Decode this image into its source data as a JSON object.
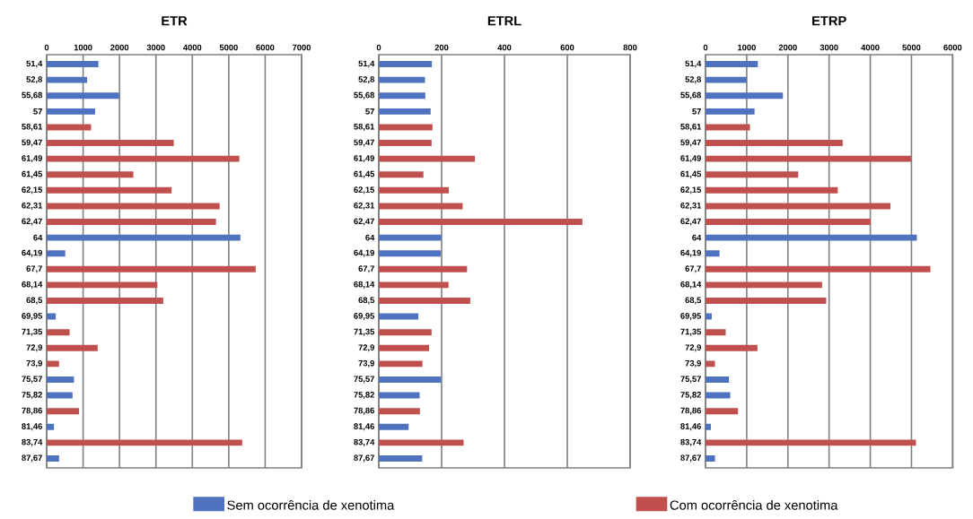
{
  "chart_data": [
    {
      "type": "bar",
      "title": "ETR",
      "orientation": "horizontal",
      "grid": "x",
      "legend": "bottom",
      "categories": [
        "51,4",
        "52,8",
        "55,68",
        "57",
        "58,61",
        "59,47",
        "61,49",
        "61,45",
        "62,15",
        "62,31",
        "62,47",
        "64",
        "64,19",
        "67,7",
        "68,14",
        "68,5",
        "69,95",
        "71,35",
        "72,9",
        "73,9",
        "75,57",
        "75,82",
        "78,86",
        "81,46",
        "83,74",
        "87,67"
      ],
      "xlim": [
        0,
        7000
      ],
      "xticks": [
        0,
        1000,
        2000,
        3000,
        4000,
        5000,
        6000,
        7000
      ],
      "series": [
        {
          "name": "Sem ocorrência de xenotima",
          "color": "#4f72be",
          "values": [
            1420,
            1110,
            1990,
            1330,
            null,
            null,
            null,
            null,
            null,
            null,
            null,
            5320,
            510,
            null,
            null,
            null,
            250,
            null,
            null,
            null,
            750,
            710,
            null,
            200,
            null,
            340
          ]
        },
        {
          "name": "Com ocorrência de xenotima",
          "color": "#c0504d",
          "values": [
            null,
            null,
            null,
            null,
            1220,
            3490,
            5290,
            2380,
            3430,
            4750,
            4650,
            null,
            null,
            5740,
            3040,
            3200,
            null,
            630,
            1400,
            340,
            null,
            null,
            890,
            null,
            5370,
            null
          ]
        }
      ]
    },
    {
      "type": "bar",
      "title": "ETRL",
      "orientation": "horizontal",
      "grid": "x",
      "categories": [
        "51,4",
        "52,8",
        "55,68",
        "57",
        "58,61",
        "59,47",
        "61,49",
        "61,45",
        "62,15",
        "62,31",
        "62,47",
        "64",
        "64,19",
        "67,7",
        "68,14",
        "68,5",
        "69,95",
        "71,35",
        "72,9",
        "73,9",
        "75,57",
        "75,82",
        "78,86",
        "81,46",
        "83,74",
        "87,67"
      ],
      "xlim": [
        0,
        800
      ],
      "xticks": [
        0,
        200,
        400,
        600,
        800
      ],
      "series": [
        {
          "color": "#4f72be",
          "values": [
            169,
            147,
            148,
            165,
            null,
            null,
            null,
            null,
            null,
            null,
            null,
            199,
            197,
            null,
            null,
            null,
            126,
            null,
            null,
            null,
            198,
            130,
            null,
            95,
            null,
            138
          ]
        },
        {
          "color": "#c0504d",
          "values": [
            null,
            null,
            null,
            null,
            171,
            168,
            306,
            142,
            223,
            267,
            648,
            null,
            null,
            281,
            222,
            291,
            null,
            168,
            160,
            139,
            null,
            null,
            131,
            null,
            270,
            null
          ]
        }
      ]
    },
    {
      "type": "bar",
      "title": "ETRP",
      "orientation": "horizontal",
      "grid": "x",
      "categories": [
        "51,4",
        "52,8",
        "55,68",
        "57",
        "58,61",
        "59,47",
        "61,49",
        "61,45",
        "62,15",
        "62,31",
        "62,47",
        "64",
        "64,19",
        "67,7",
        "68,14",
        "68,5",
        "69,95",
        "71,35",
        "72,9",
        "73,9",
        "75,57",
        "75,82",
        "78,86",
        "81,46",
        "83,74",
        "87,67"
      ],
      "xlim": [
        0,
        6000
      ],
      "xticks": [
        0,
        1000,
        2000,
        3000,
        4000,
        5000,
        6000
      ],
      "series": [
        {
          "color": "#4f72be",
          "values": [
            1270,
            1000,
            1880,
            1190,
            null,
            null,
            null,
            null,
            null,
            null,
            null,
            5130,
            340,
            null,
            null,
            null,
            150,
            null,
            null,
            null,
            570,
            600,
            null,
            130,
            null,
            230
          ]
        },
        {
          "color": "#c0504d",
          "values": [
            null,
            null,
            null,
            null,
            1080,
            3330,
            4990,
            2250,
            3210,
            4490,
            4010,
            null,
            null,
            5460,
            2830,
            2930,
            null,
            490,
            1260,
            230,
            null,
            null,
            790,
            null,
            5110,
            null
          ]
        }
      ]
    }
  ]
}
